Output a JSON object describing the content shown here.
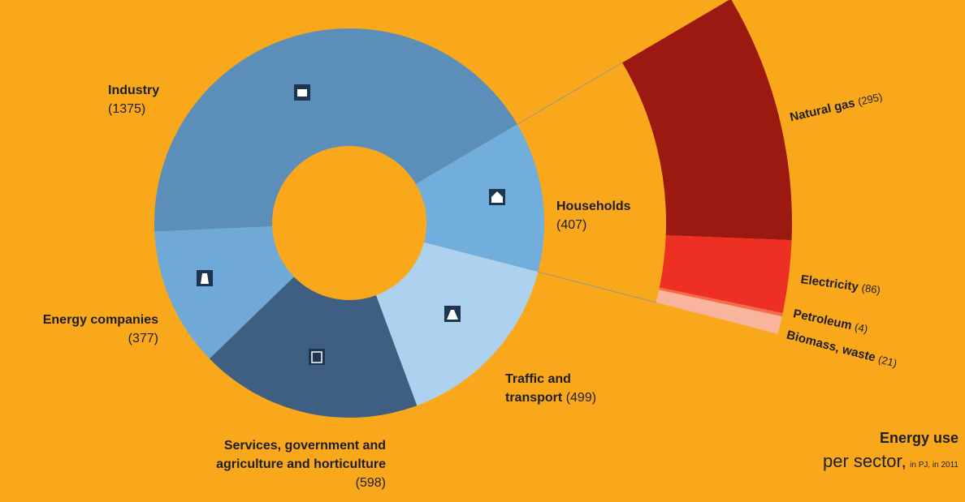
{
  "chart_data": {
    "type": "donut",
    "title": "Energy use",
    "subtitle": "per sector,",
    "unit_note": "in PJ, in 2011",
    "categories": [
      "Industry",
      "Households",
      "Traffic and transport",
      "Services, government and agriculture and horticulture",
      "Energy companies"
    ],
    "values": [
      1375,
      407,
      499,
      598,
      377
    ],
    "value_labels": [
      "(1375)",
      "(407)",
      "(499)",
      "(598)",
      "(377)"
    ],
    "colors": [
      "#5b8fba",
      "#72aedc",
      "#acd2f0",
      "#3e5f82",
      "#6ea9d8"
    ],
    "breakout": {
      "categories": [
        "Natural gas",
        "Electricity",
        "Petroleum",
        "Biomass, waste"
      ],
      "values": [
        295,
        86,
        4,
        21
      ],
      "value_labels": [
        "(295)",
        "(86)",
        "(4)",
        "(21)"
      ],
      "colors": [
        "#9b1910",
        "#ee3024",
        "#f36a4c",
        "#f8b49c"
      ]
    }
  }
}
